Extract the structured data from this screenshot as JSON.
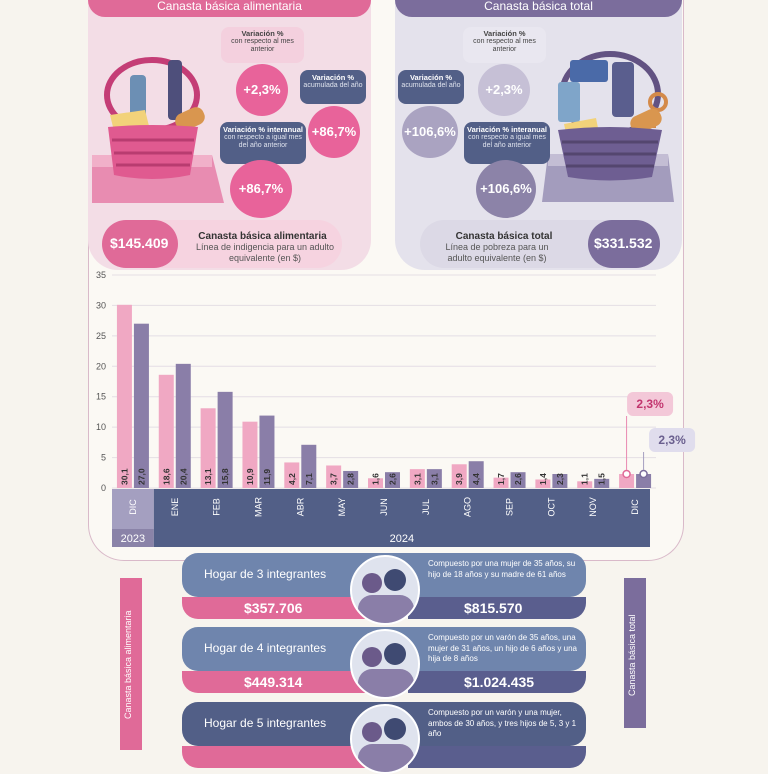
{
  "header_left": "Canasta básica alimentaria",
  "header_right": "Canasta básica total",
  "labels": {
    "var_title": "Variación %",
    "var_sub": "con respecto al mes anterior",
    "acc_title": "Variación %",
    "acc_sub": "acumulada del año",
    "inter_title": "Variación % interanual",
    "inter_sub": "con respecto a igual mes del año anterior"
  },
  "cba": {
    "monthly": "+2,3%",
    "accumulated": "+86,7%",
    "interannual": "+86,7%",
    "value": "$145.409",
    "title": "Canasta básica alimentaria",
    "subtitle": "Línea de indigencia para un adulto equivalente (en $)"
  },
  "cbt": {
    "monthly": "+2,3%",
    "accumulated": "+106,6%",
    "interannual": "+106,6%",
    "value": "$331.532",
    "title": "Canasta básica total",
    "subtitle": "Línea de pobreza para un adulto equivalente (en $)"
  },
  "chart_data": {
    "type": "bar",
    "categories": [
      "DIC",
      "ENE",
      "FEB",
      "MAR",
      "ABR",
      "MAY",
      "JUN",
      "JUL",
      "AGO",
      "SEP",
      "OCT",
      "NOV",
      "DIC"
    ],
    "years": [
      {
        "label": "2023",
        "span": 1
      },
      {
        "label": "2024",
        "span": 12
      }
    ],
    "series": [
      {
        "values": [
          30.1,
          18.6,
          13.1,
          10.9,
          4.2,
          3.7,
          1.6,
          3.1,
          3.9,
          1.7,
          1.4,
          1.1,
          2.3
        ],
        "labels": [
          "30,1",
          "18,6",
          "13,1",
          "10,9",
          "4,2",
          "3,7",
          "1,6",
          "3,1",
          "3,9",
          "1,7",
          "1,4",
          "1,1",
          "2,3%"
        ],
        "color": "#f0a8c3"
      },
      {
        "values": [
          27.0,
          20.4,
          15.8,
          11.9,
          7.1,
          2.8,
          2.6,
          3.1,
          4.4,
          2.6,
          2.3,
          1.5,
          2.3
        ],
        "labels": [
          "27,0",
          "20,4",
          "15,8",
          "11,9",
          "7,1",
          "2,8",
          "2,6",
          "3,1",
          "4,4",
          "2,6",
          "2,3",
          "1,5",
          "2,3%"
        ],
        "color": "#8a7ea8"
      }
    ],
    "yticks": [
      0,
      5,
      10,
      15,
      20,
      25,
      30,
      35
    ],
    "ylim": [
      0,
      35
    ],
    "grid": true
  },
  "households": [
    {
      "title": "Hogar de 3 integrantes",
      "desc": "Compuesto por una mujer de 35 años, su hijo de 18 años y su madre de 61 años",
      "cba": "$357.706",
      "cbt": "$815.570"
    },
    {
      "title": "Hogar de 4 integrantes",
      "desc": "Compuesto por un varón de 35 años, una mujer de 31 años, un hijo de 6 años y una hija de 8 años",
      "cba": "$449.314",
      "cbt": "$1.024.435"
    },
    {
      "title": "Hogar de 5 integrantes",
      "desc": "Compuesto por un varón y una mujer, ambos de 30 años, y tres hijos de 5, 3 y 1 año",
      "cba": "",
      "cbt": ""
    }
  ],
  "side_left": "Canasta básica alimentaria",
  "side_right": "Canasta básica total",
  "colors": {
    "pink": "#e06a98",
    "purple": "#7b6d9c",
    "navy": "#525f87"
  }
}
